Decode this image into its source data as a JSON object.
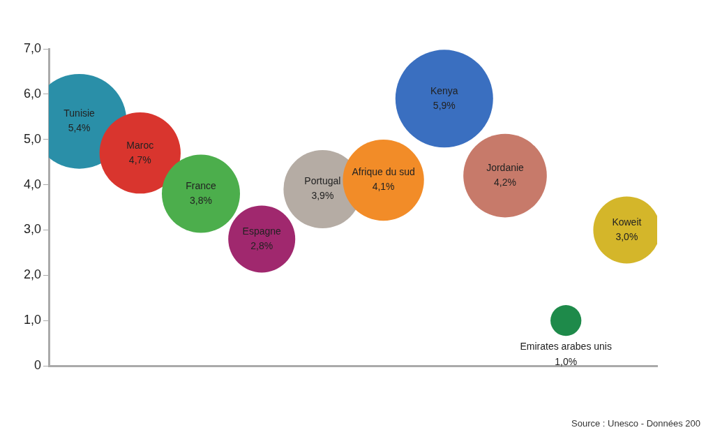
{
  "chart_data": {
    "type": "bubble",
    "categories": [
      "Tunisie",
      "Maroc",
      "France",
      "Espagne",
      "Portugal",
      "Afrique du sud",
      "Kenya",
      "Jordanie",
      "Emirates arabes unis",
      "Koweit"
    ],
    "values": [
      5.4,
      4.7,
      3.8,
      2.8,
      3.9,
      4.1,
      5.9,
      4.2,
      1.0,
      3.0
    ],
    "value_labels": [
      "5,4%",
      "4,7%",
      "3,8%",
      "2,8%",
      "3,9%",
      "4,1%",
      "5,9%",
      "4,2%",
      "1,0%",
      "3,0%"
    ],
    "sizes": [
      0.94,
      0.69,
      0.64,
      0.47,
      0.64,
      0.69,
      1,
      0.73,
      0.1,
      0.47
    ],
    "colors": [
      "#2a8fa8",
      "#d9352e",
      "#4cae4c",
      "#a0286e",
      "#b5aca4",
      "#f28c28",
      "#3a6fc0",
      "#c77a6a",
      "#1e8a4a",
      "#d4b62a"
    ],
    "ylim": [
      0,
      7
    ],
    "yticks": [
      {
        "value": 0,
        "label": "0"
      },
      {
        "value": 1,
        "label": "1,0"
      },
      {
        "value": 2,
        "label": "2,0"
      },
      {
        "value": 3,
        "label": "3,0"
      },
      {
        "value": 4,
        "label": "4,0"
      },
      {
        "value": 5,
        "label": "5,0"
      },
      {
        "value": 6,
        "label": "6,0"
      },
      {
        "value": 7,
        "label": "7,0"
      }
    ],
    "tick_labels": "y",
    "annotations": [
      "Source : Unesco - Données 200"
    ]
  }
}
